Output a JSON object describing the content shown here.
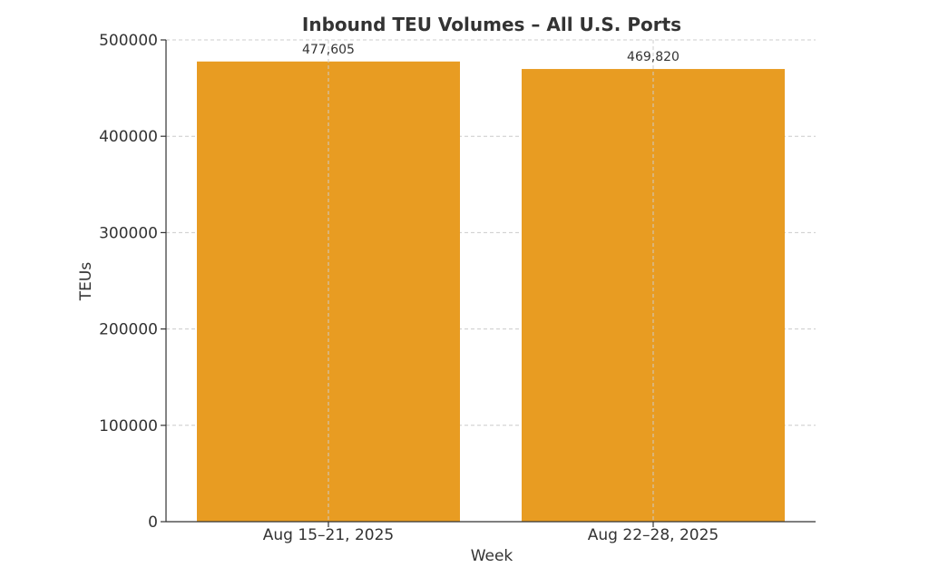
{
  "chart_data": {
    "type": "bar",
    "title": "Inbound TEU Volumes – All U.S. Ports",
    "xlabel": "Week",
    "ylabel": "TEUs",
    "categories": [
      "Aug 15–21, 2025",
      "Aug 22–28, 2025"
    ],
    "values": [
      477605,
      469820
    ],
    "data_labels": [
      "477,605",
      "469,820"
    ],
    "ylim": [
      0,
      500000
    ],
    "yticks": [
      0,
      100000,
      200000,
      300000,
      400000,
      500000
    ],
    "ytick_labels": [
      "0",
      "100000",
      "200000",
      "300000",
      "400000",
      "500000"
    ],
    "grid": true,
    "bar_color": "#e89c22"
  }
}
